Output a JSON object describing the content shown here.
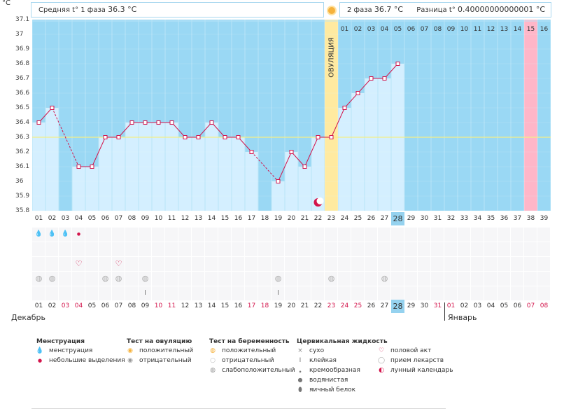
{
  "yunit": "°C",
  "header": {
    "avg1_label": "Средняя t° 1 фаза",
    "avg1_value": "36.3 °C",
    "avg2_label": "2 фаза",
    "avg2_value": "36.7 °C",
    "diff_label": "Разница t°",
    "diff_value": "0.40000000000001 °C"
  },
  "ovulation_label": "ОВУЛЯЦИЯ",
  "phase2_days": [
    "01",
    "02",
    "03",
    "04",
    "05",
    "06",
    "07",
    "08",
    "09",
    "10",
    "11",
    "12",
    "13",
    "14",
    "15",
    "16"
  ],
  "chart_data": {
    "type": "line",
    "ylim": [
      35.8,
      37.1
    ],
    "yticks": [
      "37.1",
      "37",
      "36.9",
      "36.8",
      "36.7",
      "36.6",
      "36.5",
      "36.4",
      "36.3",
      "36.2",
      "36.1",
      "36",
      "35.9",
      "35.8"
    ],
    "cycle_days": [
      "01",
      "02",
      "03",
      "04",
      "05",
      "06",
      "07",
      "08",
      "09",
      "10",
      "11",
      "12",
      "13",
      "14",
      "15",
      "16",
      "17",
      "18",
      "19",
      "20",
      "21",
      "22",
      "23",
      "24",
      "25",
      "26",
      "27",
      "28",
      "29",
      "30",
      "31",
      "32",
      "33",
      "34",
      "35",
      "36",
      "37",
      "38",
      "39"
    ],
    "current_day": "28",
    "temperatures": [
      36.4,
      36.5,
      null,
      36.1,
      36.1,
      36.3,
      36.3,
      36.4,
      36.4,
      36.4,
      36.4,
      36.3,
      36.3,
      36.4,
      36.3,
      36.3,
      36.2,
      null,
      36.0,
      36.2,
      36.1,
      36.3,
      36.3,
      36.5,
      36.6,
      36.7,
      36.7,
      36.8
    ],
    "coverline": 36.3,
    "ovulation_day": "23",
    "marker_day": "38"
  },
  "dates": [
    "01",
    "02",
    "03",
    "04",
    "05",
    "06",
    "07",
    "08",
    "09",
    "10",
    "11",
    "12",
    "13",
    "14",
    "15",
    "16",
    "17",
    "18",
    "19",
    "20",
    "21",
    "22",
    "23",
    "24",
    "25",
    "26",
    "27",
    "28",
    "29",
    "30",
    "31",
    "01",
    "02",
    "03",
    "04",
    "05",
    "06",
    "07",
    "08"
  ],
  "date_red": [
    false,
    false,
    true,
    true,
    false,
    false,
    false,
    false,
    false,
    true,
    true,
    false,
    false,
    false,
    false,
    false,
    true,
    true,
    false,
    false,
    false,
    false,
    true,
    true,
    true,
    false,
    false,
    false,
    false,
    false,
    true,
    true,
    false,
    false,
    false,
    false,
    false,
    true,
    true
  ],
  "months": {
    "m1": "Декабрь",
    "m2": "Январь"
  },
  "legend": {
    "menses": {
      "title": "Менструация",
      "items": [
        "менструация",
        "небольшие выделения"
      ]
    },
    "ovtest": {
      "title": "Тест на овуляцию",
      "items": [
        "положительный",
        "отрицательный"
      ]
    },
    "pregtest": {
      "title": "Тест на беременность",
      "items": [
        "положительный",
        "отрицательный",
        "слабоположительный"
      ]
    },
    "cervical": {
      "title": "Цервикальная жидкость",
      "items": [
        "сухо",
        "клейкая",
        "кремообразная",
        "водянистая",
        "яичный белок"
      ]
    },
    "other": {
      "items": [
        "половой акт",
        "прием лекарств",
        "лунный календарь"
      ]
    }
  },
  "colors": {
    "sky": "#9ad8f4",
    "bar": "#d4efff",
    "line": "#d3154c",
    "ovulation": "#ffeaa0",
    "marker": "#ffb6c8",
    "today": "#95d2ef"
  }
}
